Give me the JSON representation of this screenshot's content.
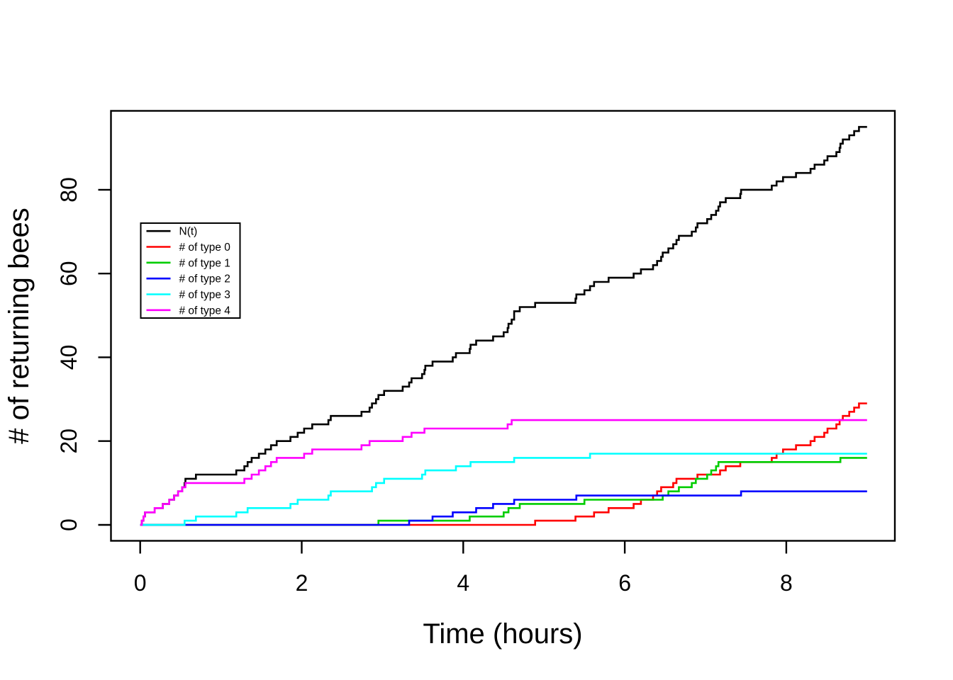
{
  "figure": {
    "background": "#ffffff",
    "frame_color": "#000000"
  },
  "chart_data": {
    "type": "line",
    "subtype": "step-counting-process",
    "title": "",
    "xlabel": "Time (hours)",
    "ylabel": "# of returning bees",
    "x_ticks": [
      0,
      2,
      4,
      6,
      8
    ],
    "y_ticks": [
      0,
      20,
      40,
      60,
      80
    ],
    "xlim": [
      -0.37,
      9.34
    ],
    "ylim": [
      -3.9,
      98.9
    ],
    "t_start": 0,
    "t_end": 9.0,
    "grid": false,
    "legend_position": "upper-left-inside",
    "legend_title": "",
    "series": [
      {
        "id": "N",
        "label": "N(t)",
        "color": "#000000",
        "start_value": 0,
        "final_value": 95,
        "jump_times": [
          0.02,
          0.04,
          0.06,
          0.18,
          0.28,
          0.36,
          0.42,
          0.47,
          0.52,
          0.55,
          0.56,
          0.69,
          1.19,
          1.29,
          1.33,
          1.38,
          1.47,
          1.55,
          1.62,
          1.69,
          1.86,
          1.95,
          2.03,
          2.13,
          2.33,
          2.36,
          2.74,
          2.84,
          2.87,
          2.92,
          2.95,
          3.02,
          3.25,
          3.33,
          3.36,
          3.49,
          3.52,
          3.53,
          3.62,
          3.87,
          3.91,
          4.08,
          4.09,
          4.16,
          4.37,
          4.5,
          4.55,
          4.56,
          4.6,
          4.63,
          4.63,
          4.7,
          4.89,
          5.39,
          5.4,
          5.5,
          5.57,
          5.62,
          5.8,
          6.11,
          6.2,
          6.35,
          6.4,
          6.45,
          6.47,
          6.54,
          6.6,
          6.64,
          6.67,
          6.83,
          6.88,
          6.9,
          7.02,
          7.07,
          7.13,
          7.16,
          7.18,
          7.25,
          7.43,
          7.44,
          7.82,
          7.88,
          7.96,
          8.12,
          8.3,
          8.35,
          8.47,
          8.51,
          8.62,
          8.66,
          8.67,
          8.7,
          8.78,
          8.84,
          8.9
        ]
      },
      {
        "id": "type0",
        "label": "# of type 0",
        "color": "#FF0000",
        "start_value": 0,
        "final_value": 29,
        "jump_times": [
          4.89,
          5.39,
          5.62,
          5.8,
          6.11,
          6.2,
          6.35,
          6.4,
          6.45,
          6.6,
          6.64,
          6.9,
          7.18,
          7.25,
          7.43,
          7.82,
          7.88,
          7.96,
          8.12,
          8.3,
          8.35,
          8.47,
          8.51,
          8.62,
          8.66,
          8.7,
          8.78,
          8.84,
          8.9
        ]
      },
      {
        "id": "type1",
        "label": "# of type 1",
        "color": "#00CD00",
        "start_value": 0,
        "final_value": 16,
        "jump_times": [
          2.95,
          4.08,
          4.5,
          4.56,
          4.7,
          5.5,
          6.47,
          6.54,
          6.67,
          6.83,
          6.88,
          7.02,
          7.07,
          7.13,
          7.16,
          8.67
        ]
      },
      {
        "id": "type2",
        "label": "# of type 2",
        "color": "#0000FF",
        "start_value": 0,
        "final_value": 8,
        "jump_times": [
          3.33,
          3.62,
          3.87,
          4.16,
          4.37,
          4.63,
          5.4,
          7.44
        ]
      },
      {
        "id": "type3",
        "label": "# of type 3",
        "color": "#00FFFF",
        "start_value": 0,
        "final_value": 17,
        "jump_times": [
          0.55,
          0.69,
          1.19,
          1.33,
          1.86,
          1.95,
          2.33,
          2.36,
          2.87,
          2.92,
          3.02,
          3.49,
          3.53,
          3.91,
          4.09,
          4.63,
          5.57
        ]
      },
      {
        "id": "type4",
        "label": "# of type 4",
        "color": "#FF00FF",
        "start_value": 0,
        "final_value": 25,
        "jump_times": [
          0.02,
          0.04,
          0.06,
          0.18,
          0.28,
          0.36,
          0.42,
          0.47,
          0.52,
          0.56,
          1.29,
          1.38,
          1.47,
          1.55,
          1.62,
          1.69,
          2.03,
          2.13,
          2.74,
          2.84,
          3.25,
          3.36,
          3.52,
          4.55,
          4.6
        ]
      }
    ]
  }
}
